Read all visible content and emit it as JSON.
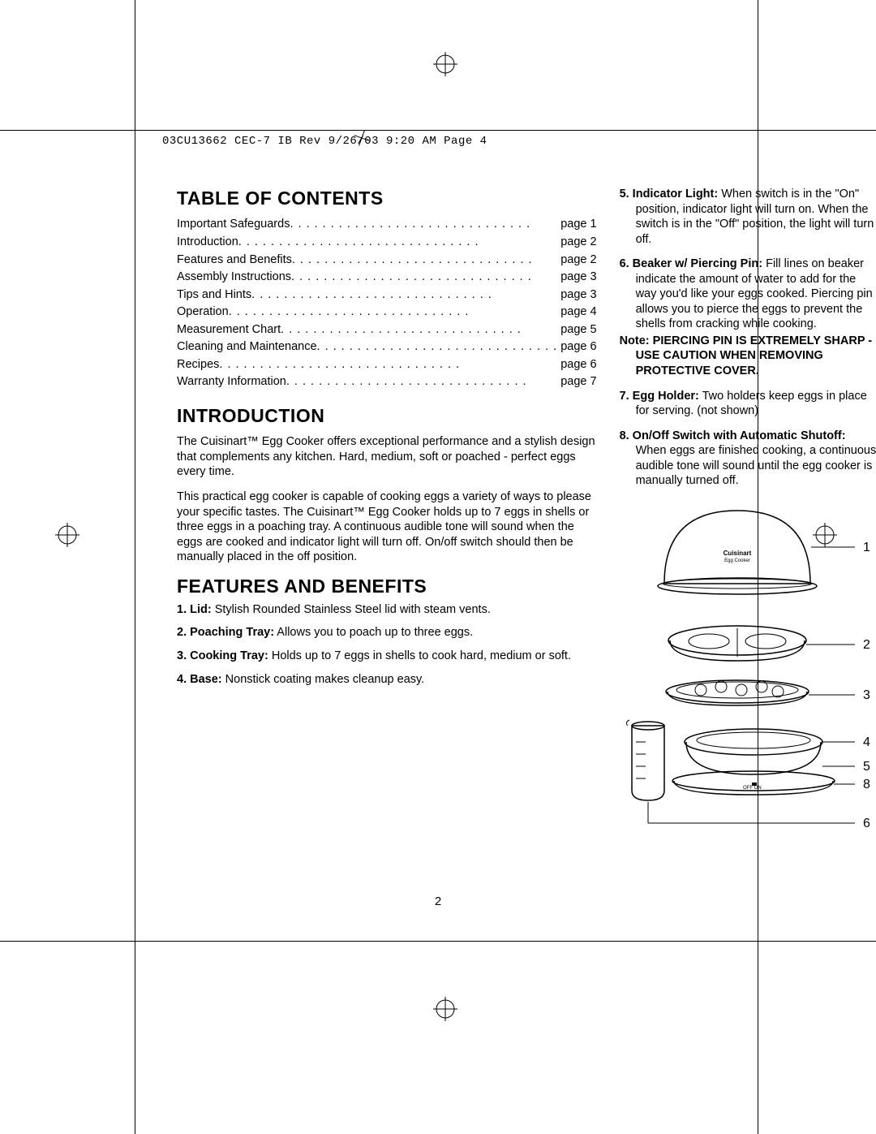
{
  "meta": {
    "header": "03CU13662 CEC-7 IB Rev  9/26/03  9:20 AM  Page 4",
    "page_number": "2"
  },
  "left": {
    "toc_title": "TABLE OF CONTENTS",
    "toc": [
      {
        "label": "Important Safeguards",
        "page": "page 1"
      },
      {
        "label": "Introduction",
        "page": "page 2"
      },
      {
        "label": "Features and Benefits",
        "page": "page 2"
      },
      {
        "label": "Assembly Instructions",
        "page": "page 3"
      },
      {
        "label": "Tips and Hints",
        "page": "page 3"
      },
      {
        "label": "Operation",
        "page": "page 4"
      },
      {
        "label": "Measurement Chart",
        "page": "page 5"
      },
      {
        "label": "Cleaning and Maintenance",
        "page": "page 6"
      },
      {
        "label": "Recipes",
        "page": "page 6"
      },
      {
        "label": "Warranty Information",
        "page": "page 7"
      }
    ],
    "intro_title": "INTRODUCTION",
    "intro_p1": "The Cuisinart™ Egg Cooker offers exceptional performance and a stylish design that complements any kitchen. Hard, medium, soft or poached - perfect eggs every time.",
    "intro_p2": "This practical egg cooker is capable of cooking eggs a variety of ways to please your specific tastes. The Cuisinart™ Egg Cooker holds up to 7 eggs in shells or three eggs in a poaching tray. A continuous audible tone will sound when the eggs are cooked and indicator light will turn off. On/off switch should then be manually placed in the off position.",
    "features_title": "FEATURES AND BENEFITS",
    "f1_h": "1. Lid:",
    "f1_t": " Stylish Rounded Stainless Steel lid with steam vents.",
    "f2_h": "2. Poaching Tray:",
    "f2_t": " Allows you to poach up to three eggs.",
    "f3_h": "3. Cooking Tray:",
    "f3_t": " Holds up to 7 eggs in shells to cook hard, medium or soft.",
    "f4_h": "4. Base:",
    "f4_t": " Nonstick coating makes cleanup easy."
  },
  "right": {
    "f5_h": "5. Indicator Light:",
    "f5_t": " When switch is in the \"On\" position, indicator light will turn on. When the switch is in the \"Off\" position, the light will turn off.",
    "f6_h": "6. Beaker w/ Piercing Pin:",
    "f6_t": " Fill lines on beaker indicate the amount of water to add for the way you'd like your eggs cooked. Piercing pin allows you to pierce the eggs to prevent the shells from cracking while cooking.",
    "f6_note": "Note: PIERCING PIN IS EXTREMELY SHARP - USE CAUTION WHEN REMOVING PROTECTIVE COVER.",
    "f7_h": "7. Egg Holder:",
    "f7_t": " Two holders keep eggs in place for serving. (not shown)",
    "f8_h": "8. On/Off Switch with Automatic Shutoff:",
    "f8_t": " When eggs are finished cooking, a continuous audible tone will sound until the egg cooker is manually turned off.",
    "labels": {
      "l1": "1",
      "l2": "2",
      "l3": "3",
      "l4": "4",
      "l5": "5",
      "l6": "6",
      "l8": "8"
    },
    "brand": "Cuisinart",
    "brand_sub": "Egg Cooker"
  }
}
